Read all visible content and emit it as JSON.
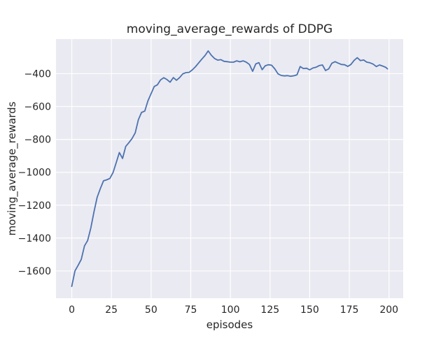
{
  "chart_data": {
    "type": "line",
    "title": "moving_average_rewards of DDPG",
    "xlabel": "episodes",
    "ylabel": "moving_average_rewards",
    "xlim": [
      -9.95,
      208.95
    ],
    "ylim": [
      -1766,
      -190
    ],
    "xticks": [
      0,
      25,
      50,
      75,
      100,
      125,
      150,
      175,
      200
    ],
    "yticks": [
      -400,
      -600,
      -800,
      -1000,
      -1200,
      -1400,
      -1600
    ],
    "grid": true,
    "legend": "none",
    "style": {
      "figure_bg": "#ffffff",
      "axes_bg": "#eaeaf2",
      "grid_color": "#ffffff",
      "line_color": "#4c72b0",
      "text_color": "#262626",
      "line_width": 1.8
    },
    "series": [
      {
        "name": "DDPG moving average rewards",
        "x": [
          0,
          2,
          4,
          6,
          8,
          10,
          12,
          14,
          16,
          18,
          20,
          22,
          24,
          26,
          28,
          30,
          32,
          34,
          36,
          38,
          40,
          42,
          44,
          46,
          48,
          50,
          52,
          54,
          56,
          58,
          60,
          62,
          64,
          66,
          68,
          70,
          72,
          74,
          76,
          78,
          80,
          82,
          84,
          86,
          88,
          90,
          92,
          94,
          96,
          98,
          100,
          102,
          104,
          106,
          108,
          110,
          112,
          114,
          116,
          118,
          120,
          122,
          124,
          126,
          128,
          130,
          132,
          134,
          136,
          138,
          140,
          142,
          144,
          146,
          148,
          150,
          152,
          154,
          156,
          158,
          160,
          162,
          164,
          166,
          168,
          170,
          172,
          174,
          176,
          178,
          180,
          182,
          184,
          186,
          188,
          190,
          192,
          194,
          196,
          198,
          199
        ],
        "y": [
          -1694,
          -1600,
          -1566,
          -1530,
          -1448,
          -1415,
          -1340,
          -1240,
          -1152,
          -1100,
          -1052,
          -1046,
          -1038,
          -1002,
          -942,
          -880,
          -916,
          -843,
          -820,
          -795,
          -760,
          -680,
          -636,
          -628,
          -566,
          -522,
          -478,
          -468,
          -438,
          -425,
          -436,
          -452,
          -424,
          -440,
          -424,
          -401,
          -394,
          -392,
          -377,
          -358,
          -335,
          -312,
          -290,
          -262,
          -288,
          -308,
          -318,
          -315,
          -325,
          -327,
          -330,
          -330,
          -322,
          -328,
          -322,
          -330,
          -344,
          -386,
          -341,
          -333,
          -376,
          -352,
          -346,
          -349,
          -371,
          -401,
          -411,
          -414,
          -412,
          -416,
          -413,
          -407,
          -357,
          -369,
          -367,
          -377,
          -366,
          -361,
          -351,
          -347,
          -381,
          -371,
          -337,
          -327,
          -336,
          -344,
          -346,
          -356,
          -344,
          -319,
          -303,
          -321,
          -317,
          -330,
          -334,
          -342,
          -357,
          -347,
          -354,
          -362,
          -371
        ]
      }
    ]
  }
}
